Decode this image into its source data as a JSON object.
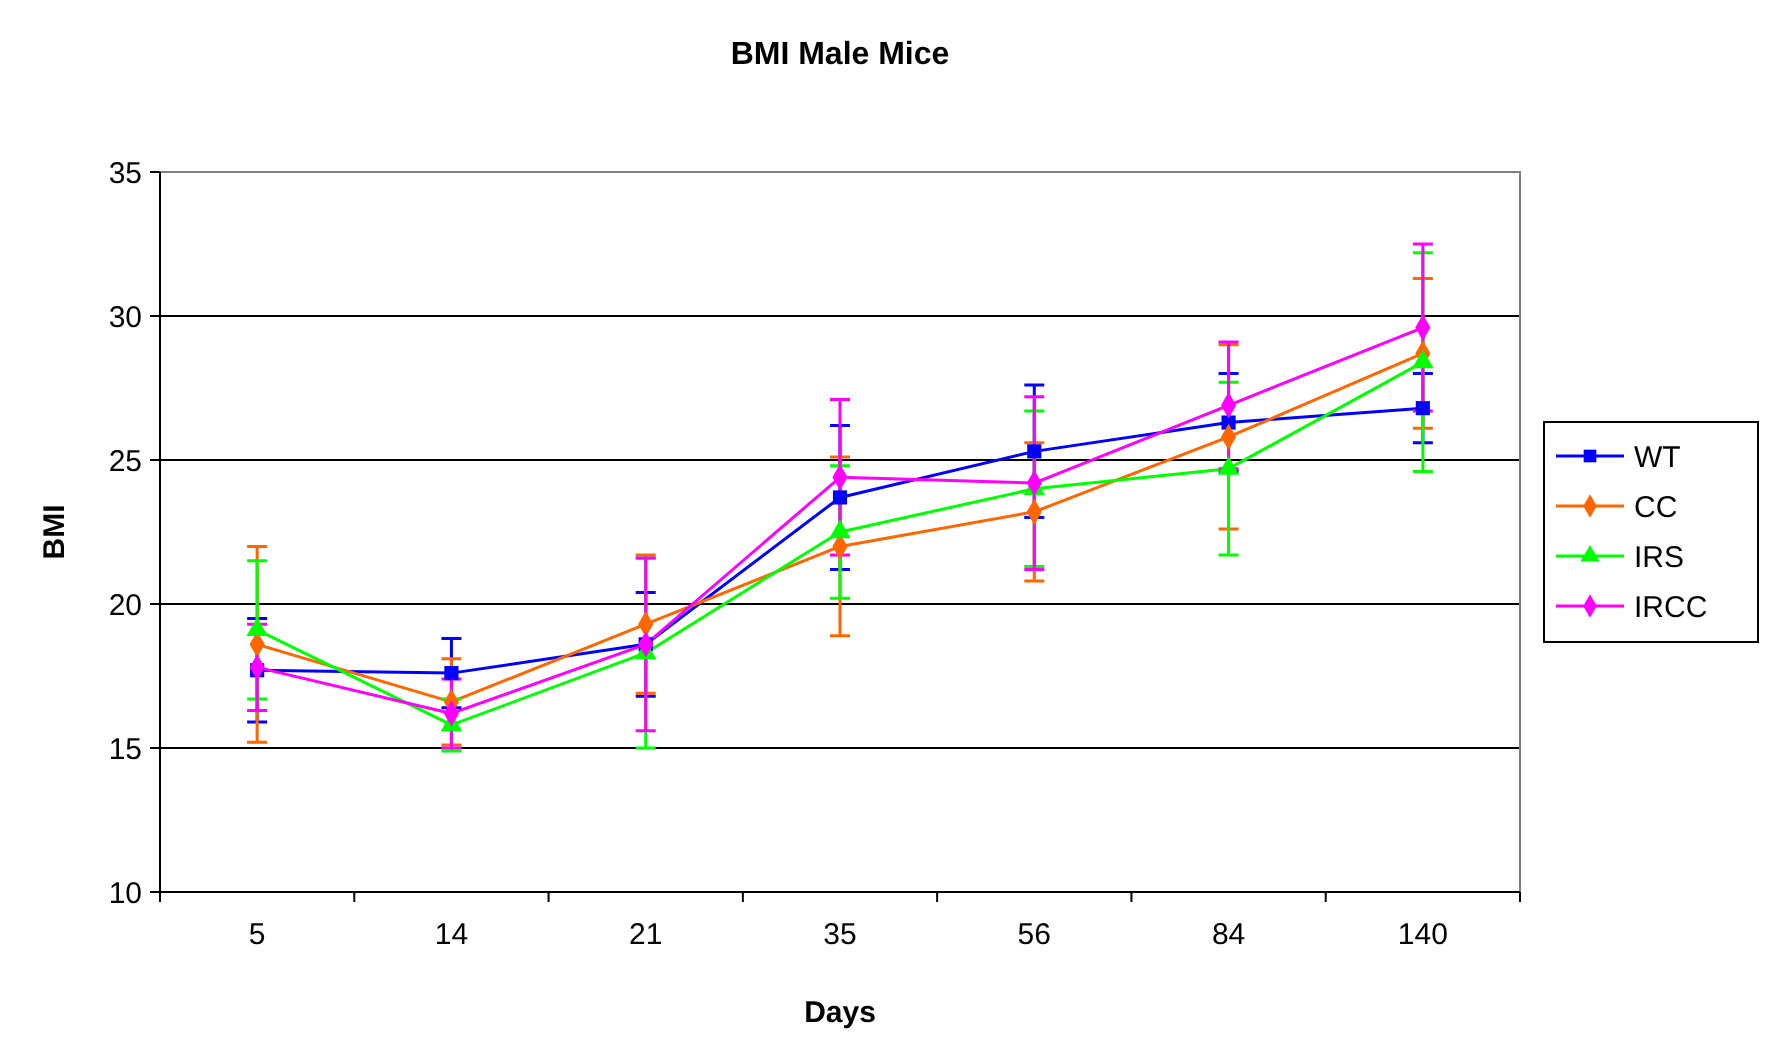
{
  "chart_data": {
    "type": "line",
    "title": "BMI Male Mice",
    "xlabel": "Days",
    "ylabel": "BMI",
    "categories": [
      "5",
      "14",
      "21",
      "35",
      "56",
      "84",
      "140"
    ],
    "ylim": [
      10,
      35
    ],
    "yticks": [
      10,
      15,
      20,
      25,
      30,
      35
    ],
    "grid": "y",
    "legend": "right",
    "series": [
      {
        "name": "WT",
        "color": "#0000ff",
        "marker": "square",
        "values": [
          17.7,
          17.6,
          18.6,
          23.7,
          25.3,
          26.3,
          26.8
        ],
        "errors": [
          1.8,
          1.2,
          1.8,
          2.5,
          2.3,
          1.7,
          1.2
        ]
      },
      {
        "name": "CC",
        "color": "#ff6600",
        "marker": "diamond",
        "values": [
          18.6,
          16.6,
          19.3,
          22.0,
          23.2,
          25.8,
          28.7
        ],
        "errors": [
          3.4,
          1.5,
          2.4,
          3.1,
          2.4,
          3.2,
          2.6
        ]
      },
      {
        "name": "IRS",
        "color": "#00ff00",
        "marker": "triangle",
        "values": [
          19.1,
          15.8,
          18.3,
          22.5,
          24.0,
          24.7,
          28.4
        ],
        "errors": [
          2.4,
          0.9,
          3.3,
          2.3,
          2.7,
          3.0,
          3.8
        ]
      },
      {
        "name": "IRCC",
        "color": "#ff00ff",
        "marker": "diamond",
        "values": [
          17.8,
          16.2,
          18.6,
          24.4,
          24.2,
          26.9,
          29.6
        ],
        "errors": [
          1.5,
          1.2,
          3.0,
          2.7,
          3.0,
          2.2,
          2.9
        ]
      }
    ]
  }
}
